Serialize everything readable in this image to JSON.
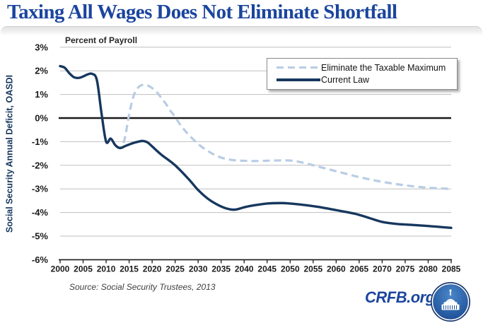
{
  "title": "Taxing All Wages Does Not Eliminate Shortfall",
  "source": "Source: Social Security Trustees, 2013",
  "footer": {
    "site": "CRFB.org",
    "logo": "crfb-capitol-logo"
  },
  "colors": {
    "title_blue": "#1B459E",
    "current_law_navy": "#17375E",
    "eliminate_max_light_blue": "#B8CCE4",
    "grid_gray": "#BFBFBF",
    "axis_black": "#1A1A1A",
    "ylabel_navy": "#17375E",
    "logo_outer_navy": "#16356B",
    "logo_inner_blue": "#2E69B0"
  },
  "chart_data": {
    "type": "line",
    "title": "Taxing All Wages Does Not Eliminate Shortfall",
    "unit_label": "Percent of Payroll",
    "ylabel": "Social Security Annual Deficit, OASDI",
    "xlabel": "",
    "xlim": [
      2000,
      2085
    ],
    "ylim": [
      -6,
      3
    ],
    "grid": "horizontal",
    "legend_position": "top-right",
    "ytick_suffix": "%",
    "yticks": [
      3,
      2,
      1,
      0,
      -1,
      -2,
      -3,
      -4,
      -5,
      -6
    ],
    "xticks": [
      2000,
      2005,
      2010,
      2015,
      2020,
      2025,
      2030,
      2035,
      2040,
      2045,
      2050,
      2055,
      2060,
      2065,
      2070,
      2075,
      2080,
      2085
    ],
    "series": [
      {
        "name": "Eliminate the Taxable Maximum",
        "style": "dashed",
        "color": "#B8CCE4",
        "points": [
          [
            2012,
            -1.15
          ],
          [
            2013,
            -1.25
          ],
          [
            2014,
            -0.9
          ],
          [
            2015,
            0.15
          ],
          [
            2016,
            0.95
          ],
          [
            2017,
            1.3
          ],
          [
            2018,
            1.41
          ],
          [
            2019,
            1.38
          ],
          [
            2020,
            1.27
          ],
          [
            2021,
            1.1
          ],
          [
            2022,
            0.85
          ],
          [
            2023,
            0.6
          ],
          [
            2024,
            0.3
          ],
          [
            2025,
            0.05
          ],
          [
            2026,
            -0.25
          ],
          [
            2027,
            -0.5
          ],
          [
            2028,
            -0.72
          ],
          [
            2030,
            -1.1
          ],
          [
            2032,
            -1.38
          ],
          [
            2034,
            -1.6
          ],
          [
            2036,
            -1.73
          ],
          [
            2038,
            -1.79
          ],
          [
            2040,
            -1.81
          ],
          [
            2043,
            -1.82
          ],
          [
            2046,
            -1.8
          ],
          [
            2050,
            -1.8
          ],
          [
            2053,
            -1.9
          ],
          [
            2056,
            -2.05
          ],
          [
            2060,
            -2.25
          ],
          [
            2065,
            -2.5
          ],
          [
            2070,
            -2.7
          ],
          [
            2075,
            -2.85
          ],
          [
            2080,
            -2.95
          ],
          [
            2085,
            -3.0
          ]
        ]
      },
      {
        "name": "Current Law",
        "style": "solid",
        "color": "#17375E",
        "points": [
          [
            2000,
            2.2
          ],
          [
            2001,
            2.13
          ],
          [
            2002,
            1.9
          ],
          [
            2003,
            1.73
          ],
          [
            2004,
            1.7
          ],
          [
            2005,
            1.76
          ],
          [
            2006,
            1.85
          ],
          [
            2007,
            1.87
          ],
          [
            2008,
            1.6
          ],
          [
            2009,
            0.2
          ],
          [
            2010,
            -1.0
          ],
          [
            2011,
            -0.87
          ],
          [
            2012,
            -1.15
          ],
          [
            2013,
            -1.27
          ],
          [
            2014,
            -1.2
          ],
          [
            2015,
            -1.12
          ],
          [
            2016,
            -1.05
          ],
          [
            2017,
            -1.0
          ],
          [
            2018,
            -0.97
          ],
          [
            2019,
            -1.03
          ],
          [
            2020,
            -1.2
          ],
          [
            2022,
            -1.55
          ],
          [
            2025,
            -2.0
          ],
          [
            2028,
            -2.6
          ],
          [
            2030,
            -3.05
          ],
          [
            2032,
            -3.4
          ],
          [
            2034,
            -3.65
          ],
          [
            2036,
            -3.82
          ],
          [
            2038,
            -3.88
          ],
          [
            2040,
            -3.78
          ],
          [
            2042,
            -3.7
          ],
          [
            2045,
            -3.62
          ],
          [
            2048,
            -3.6
          ],
          [
            2050,
            -3.62
          ],
          [
            2053,
            -3.68
          ],
          [
            2056,
            -3.76
          ],
          [
            2060,
            -3.9
          ],
          [
            2064,
            -4.05
          ],
          [
            2067,
            -4.22
          ],
          [
            2070,
            -4.4
          ],
          [
            2073,
            -4.48
          ],
          [
            2076,
            -4.52
          ],
          [
            2080,
            -4.57
          ],
          [
            2083,
            -4.62
          ],
          [
            2085,
            -4.65
          ]
        ]
      }
    ]
  }
}
